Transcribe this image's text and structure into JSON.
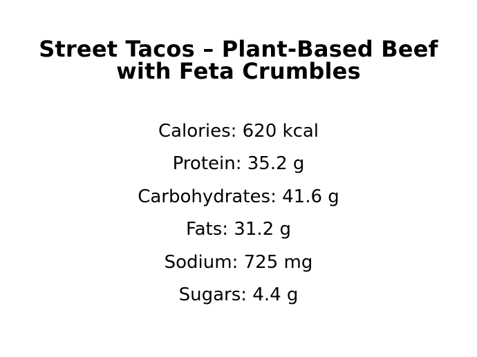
{
  "title": {
    "full": "Street Tacos – Plant-Based Beef with Feta Crumbles",
    "lines": [
      "Street Tacos – Plant-Based Beef",
      "with Feta Crumbles"
    ]
  },
  "nutrition": {
    "items": [
      {
        "label": "Calories",
        "value": "620",
        "unit": "kcal",
        "text": "Calories: 620 kcal"
      },
      {
        "label": "Protein",
        "value": "35.2",
        "unit": "g",
        "text": "Protein: 35.2 g"
      },
      {
        "label": "Carbohydrates",
        "value": "41.6",
        "unit": "g",
        "text": "Carbohydrates: 41.6 g"
      },
      {
        "label": "Fats",
        "value": "31.2",
        "unit": "g",
        "text": "Fats: 31.2 g"
      },
      {
        "label": "Sodium",
        "value": "725",
        "unit": "mg",
        "text": "Sodium: 725 mg"
      },
      {
        "label": "Sugars",
        "value": "4.4",
        "unit": "g",
        "text": "Sugars: 4.4 g"
      }
    ]
  },
  "colors": {
    "background": "#ffffff",
    "text": "#000000"
  }
}
